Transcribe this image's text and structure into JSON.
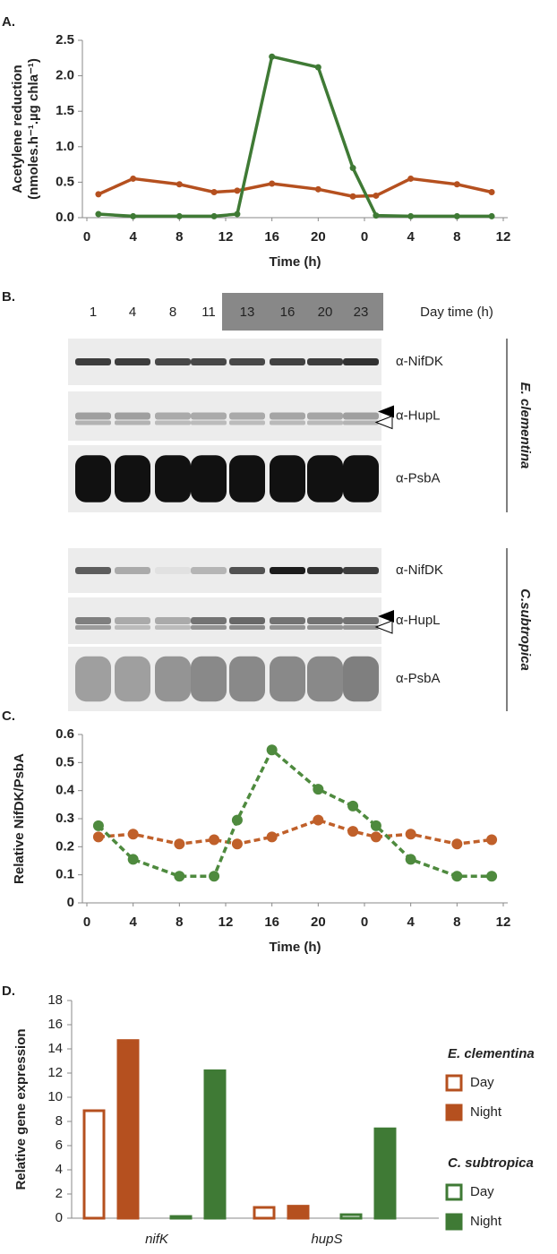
{
  "chart_data": [
    {
      "type": "line",
      "panel": "A.",
      "ylabel": [
        "Acetylene reduction",
        "(nmoles.h⁻¹.µg chla⁻¹)"
      ],
      "xlabel": "Time (h)",
      "x": [
        1,
        4,
        8,
        11,
        13,
        16,
        20,
        23,
        25,
        28,
        32,
        35
      ],
      "xlim": [
        0,
        36
      ],
      "xticks": [
        0,
        4,
        8,
        12,
        16,
        20,
        {
          "value": 24,
          "label": "0"
        },
        {
          "value": 28,
          "label": "4"
        },
        {
          "value": 32,
          "label": "8"
        },
        {
          "value": 36,
          "label": "12"
        }
      ],
      "ylim": [
        0,
        2.5
      ],
      "yticks": [
        {
          "value": 0,
          "label": "0.0"
        },
        0.5,
        {
          "value": 1,
          "label": "1.0"
        },
        1.5,
        {
          "value": 2,
          "label": "2.0"
        },
        2.5
      ],
      "line_style": "solid",
      "series": [
        {
          "name": "E. clementina",
          "color": "#b5501f",
          "values": [
            0.33,
            0.55,
            0.47,
            0.36,
            0.38,
            0.48,
            0.4,
            0.3,
            0.31,
            0.55,
            0.47,
            0.36
          ]
        },
        {
          "name": "C. subtropica",
          "color": "#3f7a35",
          "values": [
            0.05,
            0.02,
            0.02,
            0.02,
            0.05,
            2.27,
            2.12,
            0.7,
            0.03,
            0.02,
            0.02,
            0.02
          ]
        }
      ]
    },
    {
      "type": "line",
      "panel": "C.",
      "ylabel": [
        "Relative NifDK/PsbA"
      ],
      "xlabel": "Time (h)",
      "x": [
        1,
        4,
        8,
        11,
        13,
        16,
        20,
        23,
        25,
        28,
        32,
        35
      ],
      "xlim": [
        0,
        36
      ],
      "xticks": [
        0,
        4,
        8,
        12,
        16,
        20,
        {
          "value": 24,
          "label": "0"
        },
        {
          "value": 28,
          "label": "4"
        },
        {
          "value": 32,
          "label": "8"
        },
        {
          "value": 36,
          "label": "12"
        }
      ],
      "ylim": [
        0,
        0.6
      ],
      "yticks": [
        0,
        0.1,
        0.2,
        0.3,
        0.4,
        0.5,
        0.6
      ],
      "line_style": "dashed",
      "series": [
        {
          "name": "E. clementina",
          "color": "#c0602a",
          "values": [
            0.235,
            0.245,
            0.21,
            0.225,
            0.21,
            0.235,
            0.295,
            0.255,
            0.235,
            0.245,
            0.21,
            0.225
          ]
        },
        {
          "name": "C. subtropica",
          "color": "#4e8a3e",
          "values": [
            0.275,
            0.155,
            0.095,
            0.095,
            0.295,
            0.545,
            0.405,
            0.345,
            0.275,
            0.155,
            0.095,
            0.095
          ]
        }
      ]
    },
    {
      "type": "bar",
      "panel": "D.",
      "ylabel": [
        "Relative gene expression"
      ],
      "categories": [
        "nifK",
        "hupS"
      ],
      "ylim": [
        0,
        18
      ],
      "yticks": [
        0,
        2,
        4,
        6,
        8,
        10,
        12,
        14,
        16,
        18
      ],
      "series": [
        {
          "group": "E. clementina",
          "name": "Day",
          "color": "#b5501f",
          "filled": false,
          "values": [
            9,
            1.0
          ]
        },
        {
          "group": "E. clementina",
          "name": "Night",
          "color": "#b5501f",
          "filled": true,
          "values": [
            14.8,
            1.1
          ]
        },
        {
          "group": "C. subtropica",
          "name": "Day",
          "color": "#3f7a35",
          "filled": false,
          "values": [
            0.25,
            0.4
          ]
        },
        {
          "group": "C. subtropica",
          "name": "Night",
          "color": "#3f7a35",
          "filled": true,
          "values": [
            12.3,
            7.5
          ]
        }
      ]
    }
  ],
  "blot": {
    "panel": "B.",
    "lanes": [
      "1",
      "4",
      "8",
      "11",
      "13",
      "16",
      "20",
      "23"
    ],
    "lane_title": "Day time (h)",
    "species": [
      {
        "name": "E. clementina",
        "antibodies": [
          "α-NifDK",
          "α-HupL",
          "α-PsbA"
        ]
      },
      {
        "name": "C.subtropica",
        "antibodies": [
          "α-NifDK",
          "α-HupL",
          "α-PsbA"
        ]
      }
    ]
  }
}
